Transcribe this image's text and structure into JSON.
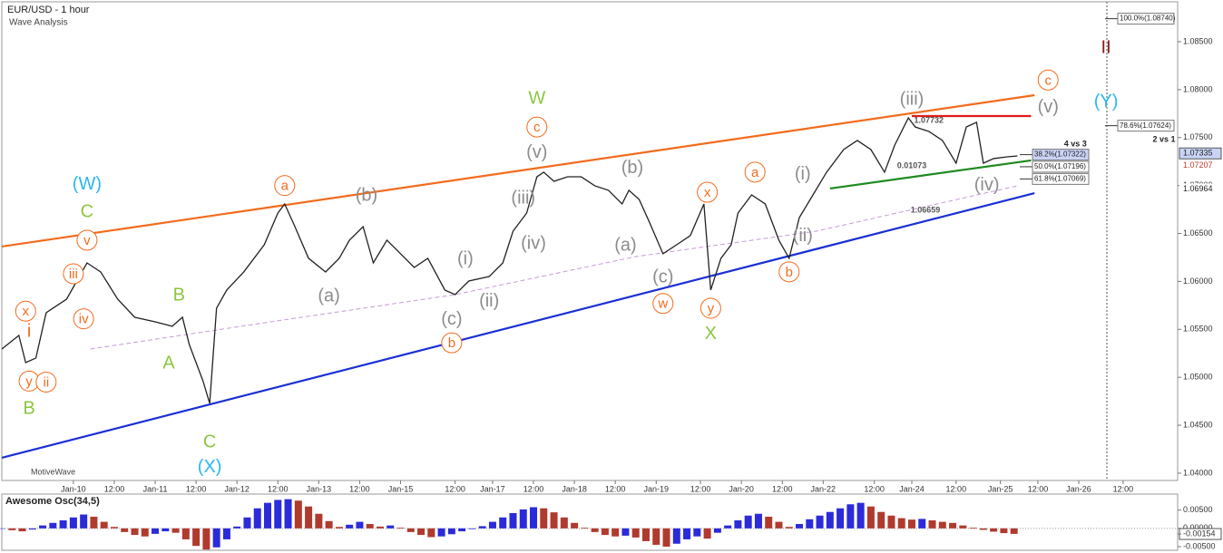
{
  "chart_data": [
    {
      "type": "line",
      "title": "EUR/USD - 1 hour",
      "subtitle": "Wave Analysis",
      "watermark": "MotiveWave",
      "xlim": [
        0,
        345
      ],
      "ylim": [
        1.03924,
        1.08916
      ],
      "xticks": [
        {
          "value": 21,
          "label": "Jan-10"
        },
        {
          "value": 33,
          "label": "12:00"
        },
        {
          "value": 45,
          "label": "Jan-11"
        },
        {
          "value": 57,
          "label": "12:00"
        },
        {
          "value": 69,
          "label": "Jan-12"
        },
        {
          "value": 81,
          "label": "12:00"
        },
        {
          "value": 93,
          "label": "Jan-13"
        },
        {
          "value": 105,
          "label": "12:00"
        },
        {
          "value": 117,
          "label": "Jan-15"
        },
        {
          "value": 133,
          "label": "12:00"
        },
        {
          "value": 144,
          "label": "Jan-17"
        },
        {
          "value": 156,
          "label": "12:00"
        },
        {
          "value": 168,
          "label": "Jan-18"
        },
        {
          "value": 180,
          "label": "12:00"
        },
        {
          "value": 192,
          "label": "Jan-19"
        },
        {
          "value": 205,
          "label": "12:00"
        },
        {
          "value": 217,
          "label": "Jan-20"
        },
        {
          "value": 229,
          "label": "12:00"
        },
        {
          "value": 241,
          "label": "Jan-22"
        },
        {
          "value": 256,
          "label": "12:00"
        },
        {
          "value": 267,
          "label": "Jan-24"
        },
        {
          "value": 280,
          "label": "12:00"
        },
        {
          "value": 293,
          "label": "Jan-25"
        },
        {
          "value": 304,
          "label": "12:00"
        },
        {
          "value": 316,
          "label": "Jan-26"
        },
        {
          "value": 329,
          "label": "12:00"
        }
      ],
      "yticks": [
        {
          "value": 1.04,
          "label": "1.04000"
        },
        {
          "value": 1.045,
          "label": "1.04500"
        },
        {
          "value": 1.05,
          "label": "1.05000"
        },
        {
          "value": 1.055,
          "label": "1.05500"
        },
        {
          "value": 1.06,
          "label": "1.06000"
        },
        {
          "value": 1.065,
          "label": "1.06500"
        },
        {
          "value": 1.07,
          "label": "1.07000"
        },
        {
          "value": 1.075,
          "label": "1.07500"
        },
        {
          "value": 1.08,
          "label": "1.08000"
        },
        {
          "value": 1.085,
          "label": "1.08500"
        }
      ],
      "series": [
        {
          "color": "#222222",
          "x": [
            0,
            5,
            7,
            10,
            13,
            15,
            19,
            25,
            29,
            34,
            39,
            45,
            50,
            53,
            55,
            59,
            61,
            63,
            66,
            71,
            77,
            81,
            83,
            86,
            90,
            95,
            99,
            102,
            106,
            109,
            113,
            117,
            121,
            125,
            130,
            133,
            137,
            143,
            147,
            150,
            154,
            157,
            159,
            162,
            166,
            170,
            174,
            178,
            182,
            184,
            187,
            190,
            194,
            198,
            202,
            206,
            208,
            211,
            214,
            216,
            220,
            224,
            228,
            231,
            234,
            238,
            242,
            247,
            251,
            255,
            259,
            262,
            266,
            268,
            272,
            276,
            280,
            283,
            286,
            288,
            291,
            295,
            298
          ],
          "values": [
            1.05295,
            1.05437,
            1.05153,
            1.05201,
            1.05673,
            1.05721,
            1.05815,
            1.06193,
            1.06099,
            1.05815,
            1.05626,
            1.05579,
            1.05532,
            1.05626,
            1.05342,
            1.04964,
            1.04728,
            1.05721,
            1.0591,
            1.06099,
            1.06382,
            1.06713,
            1.06808,
            1.06571,
            1.06241,
            1.06099,
            1.06241,
            1.0643,
            1.06571,
            1.06193,
            1.0643,
            1.06288,
            1.06146,
            1.06241,
            1.0591,
            1.05862,
            1.06004,
            1.06051,
            1.06193,
            1.06524,
            1.06713,
            1.07091,
            1.07139,
            1.07044,
            1.07091,
            1.07091,
            1.06997,
            1.0695,
            1.06808,
            1.0695,
            1.06855,
            1.06619,
            1.06288,
            1.06382,
            1.06477,
            1.06808,
            1.0591,
            1.06241,
            1.06382,
            1.06713,
            1.06902,
            1.06808,
            1.0643,
            1.06241,
            1.06666,
            1.06902,
            1.07139,
            1.07375,
            1.0747,
            1.07375,
            1.07139,
            1.07422,
            1.07706,
            1.07611,
            1.07564,
            1.0747,
            1.07233,
            1.07611,
            1.07659,
            1.07233,
            1.07281,
            1.07299,
            1.07309
          ]
        }
      ],
      "overlays": [
        {
          "color": "#f26b1d",
          "x": [
            0,
            303
          ],
          "values": [
            1.06364,
            1.07942
          ]
        },
        {
          "color": "#1a2fd6",
          "x": [
            0,
            303
          ],
          "values": [
            1.04161,
            1.06921
          ]
        },
        {
          "color": "#e01b1b",
          "x": [
            267,
            302
          ],
          "values": [
            1.07725,
            1.07725
          ]
        },
        {
          "color": "#1f8a1f",
          "x": [
            243,
            302
          ],
          "values": [
            1.06969,
            1.07262
          ]
        },
        {
          "color": "#c79bd6",
          "dashed": true,
          "x": [
            26,
            79,
            133,
            186,
            239,
            298
          ],
          "values": [
            1.05295,
            1.05579,
            1.05862,
            1.06259,
            1.06524,
            1.06997
          ]
        }
      ],
      "price_markers": [
        1.07335,
        1.07207,
        1.06964
      ],
      "fib_levels": [
        {
          "label": "100.0%(1.08740)",
          "value": 1.0874
        },
        {
          "label": "78.6%(1.07624)",
          "value": 1.07624
        },
        {
          "label": "38.2%(1.07322)",
          "value": 1.07322
        },
        {
          "label": "50.0%(1.07196)",
          "value": 1.07196
        },
        {
          "label": "61.8%(1.07069)",
          "value": 1.07069
        }
      ],
      "annotations": [
        {
          "text": "(W)",
          "x": 25,
          "y": 1.0702,
          "color": "#29b6f6"
        },
        {
          "text": "C",
          "x": 25,
          "y": 1.0673,
          "color": "#8cc63f"
        },
        {
          "text": "v",
          "x": 25,
          "y": 1.0643,
          "color": "#f26b1d",
          "circle": true
        },
        {
          "text": "iii",
          "x": 21,
          "y": 1.0608,
          "color": "#f26b1d",
          "circle": true
        },
        {
          "text": "iv",
          "x": 24,
          "y": 1.0561,
          "color": "#f26b1d",
          "circle": true
        },
        {
          "text": "x",
          "x": 7,
          "y": 1.0569,
          "color": "#f26b1d",
          "circle": true
        },
        {
          "text": "i",
          "x": 8,
          "y": 1.0548,
          "color": "#f26b1d"
        },
        {
          "text": "y",
          "x": 8,
          "y": 1.0496,
          "color": "#f26b1d",
          "circle": true
        },
        {
          "text": "ii",
          "x": 13,
          "y": 1.0495,
          "color": "#f26b1d",
          "circle": true
        },
        {
          "text": "B",
          "x": 8,
          "y": 1.0468,
          "color": "#8cc63f"
        },
        {
          "text": "B",
          "x": 52,
          "y": 1.0586,
          "color": "#8cc63f"
        },
        {
          "text": "A",
          "x": 49,
          "y": 1.0515,
          "color": "#8cc63f"
        },
        {
          "text": "C",
          "x": 61,
          "y": 1.0433,
          "color": "#8cc63f"
        },
        {
          "text": "(X)",
          "x": 61,
          "y": 1.0407,
          "color": "#29b6f6"
        },
        {
          "text": "a",
          "x": 83,
          "y": 1.07,
          "color": "#f26b1d",
          "circle": true
        },
        {
          "text": "(b)",
          "x": 107,
          "y": 1.069,
          "color": "#8c8c8c"
        },
        {
          "text": "(a)",
          "x": 96,
          "y": 1.0585,
          "color": "#8c8c8c"
        },
        {
          "text": "(c)",
          "x": 132,
          "y": 1.0561,
          "color": "#8c8c8c"
        },
        {
          "text": "b",
          "x": 132,
          "y": 1.0536,
          "color": "#f26b1d",
          "circle": true
        },
        {
          "text": "(i)",
          "x": 136,
          "y": 1.0624,
          "color": "#8c8c8c"
        },
        {
          "text": "(ii)",
          "x": 143,
          "y": 1.058,
          "color": "#8c8c8c"
        },
        {
          "text": "(iii)",
          "x": 153,
          "y": 1.0687,
          "color": "#8c8c8c"
        },
        {
          "text": "(iv)",
          "x": 156,
          "y": 1.064,
          "color": "#8c8c8c"
        },
        {
          "text": "(v)",
          "x": 157,
          "y": 1.0735,
          "color": "#8c8c8c"
        },
        {
          "text": "c",
          "x": 157,
          "y": 1.0761,
          "color": "#f26b1d",
          "circle": true
        },
        {
          "text": "W",
          "x": 157,
          "y": 1.0791,
          "color": "#8cc63f"
        },
        {
          "text": "(b)",
          "x": 185,
          "y": 1.0719,
          "color": "#8c8c8c"
        },
        {
          "text": "(a)",
          "x": 183,
          "y": 1.0638,
          "color": "#8c8c8c"
        },
        {
          "text": "(c)",
          "x": 194,
          "y": 1.0605,
          "color": "#8c8c8c"
        },
        {
          "text": "w",
          "x": 194,
          "y": 1.0577,
          "color": "#f26b1d",
          "circle": true
        },
        {
          "text": "x",
          "x": 207,
          "y": 1.0693,
          "color": "#f26b1d",
          "circle": true
        },
        {
          "text": "y",
          "x": 208,
          "y": 1.0572,
          "color": "#f26b1d",
          "circle": true
        },
        {
          "text": "X",
          "x": 208,
          "y": 1.0546,
          "color": "#8cc63f"
        },
        {
          "text": "a",
          "x": 221,
          "y": 1.0714,
          "color": "#f26b1d",
          "circle": true
        },
        {
          "text": "(i)",
          "x": 235,
          "y": 1.0712,
          "color": "#8c8c8c"
        },
        {
          "text": "(ii)",
          "x": 235,
          "y": 1.0648,
          "color": "#8c8c8c"
        },
        {
          "text": "b",
          "x": 231,
          "y": 1.061,
          "color": "#f26b1d",
          "circle": true
        },
        {
          "text": "(iii)",
          "x": 267,
          "y": 1.079,
          "color": "#8c8c8c"
        },
        {
          "text": "(v)",
          "x": 307,
          "y": 1.0782,
          "color": "#8c8c8c"
        },
        {
          "text": "c",
          "x": 307,
          "y": 1.081,
          "color": "#f26b1d",
          "circle": true
        },
        {
          "text": "(iv)",
          "x": 289,
          "y": 1.0701,
          "color": "#8c8c8c"
        },
        {
          "text": "II",
          "x": 324,
          "y": 1.0844,
          "color": "#8b1a1a"
        },
        {
          "text": "(Y)",
          "x": 324,
          "y": 1.0788,
          "color": "#29b6f6"
        },
        {
          "text": "4 vs 3",
          "x": 315,
          "y": 1.07441,
          "color": "#222222",
          "small": true
        },
        {
          "text": "2 vs 1",
          "x": 341,
          "y": 1.07488,
          "color": "#222222",
          "small": true
        },
        {
          "text": "1.07732",
          "x": 272,
          "y": 1.07687,
          "color": "#555555",
          "small": true
        },
        {
          "text": "0.01073",
          "x": 267,
          "y": 1.07214,
          "color": "#555555",
          "small": true
        },
        {
          "text": "1.06659",
          "x": 271,
          "y": 1.06751,
          "color": "#555555",
          "small": true
        }
      ]
    },
    {
      "type": "bar",
      "title": "Awesome Osc(34,5)",
      "up_color": "#2b2bd9",
      "down_color": "#b03a2e",
      "ylim": [
        -0.006,
        0.0094
      ],
      "yticks": [
        {
          "value": 0.005,
          "label": "0.00500"
        },
        {
          "value": 0,
          "label": "0.00000"
        },
        -0.00154,
        {
          "value": -0.005,
          "label": "-0.00500"
        }
      ],
      "x": [
        0,
        3,
        6,
        9,
        12,
        15,
        18,
        21,
        24,
        27,
        30,
        33,
        36,
        39,
        42,
        45,
        48,
        51,
        54,
        57,
        60,
        63,
        66,
        69,
        72,
        75,
        78,
        81,
        84,
        87,
        90,
        93,
        96,
        99,
        102,
        105,
        108,
        111,
        114,
        117,
        120,
        123,
        126,
        129,
        132,
        135,
        138,
        141,
        144,
        147,
        150,
        153,
        156,
        159,
        162,
        165,
        168,
        171,
        174,
        177,
        180,
        183,
        186,
        189,
        192,
        195,
        198,
        201,
        204,
        207,
        210,
        213,
        216,
        219,
        222,
        225,
        228,
        231,
        234,
        237,
        240,
        243,
        246,
        249,
        252,
        255,
        258,
        261,
        264,
        267,
        270,
        273,
        276,
        279,
        282,
        285,
        288,
        291,
        294,
        297
      ],
      "values": [
        0,
        -0.0005,
        -0.0008,
        -0.0003,
        0.0008,
        0.0015,
        0.0022,
        0.003,
        0.0038,
        0.0032,
        0.0018,
        0.0004,
        -0.001,
        -0.0018,
        -0.0022,
        -0.0015,
        -0.0008,
        -0.0012,
        -0.003,
        -0.0048,
        -0.0058,
        -0.0052,
        -0.003,
        0.0005,
        0.003,
        0.0055,
        0.007,
        0.0078,
        0.008,
        0.0076,
        0.006,
        0.004,
        0.002,
        0.0004,
        0.001,
        0.0018,
        0.0012,
        0.0005,
        0.0008,
        0.0002,
        -0.001,
        -0.0018,
        -0.0024,
        -0.0022,
        -0.0016,
        -0.0008,
        -0.0002,
        0.0006,
        0.0018,
        0.003,
        0.0042,
        0.0052,
        0.0058,
        0.0055,
        0.0044,
        0.003,
        0.0015,
        0.0002,
        -0.001,
        -0.0018,
        -0.0022,
        -0.002,
        -0.0025,
        -0.0035,
        -0.0045,
        -0.005,
        -0.0042,
        -0.003,
        -0.0022,
        -0.0028,
        -0.0012,
        0.0008,
        0.0022,
        0.0035,
        0.004,
        0.0032,
        0.0018,
        0.0004,
        0.0012,
        0.0025,
        0.0035,
        0.0045,
        0.0055,
        0.0066,
        0.007,
        0.006,
        0.0045,
        0.0035,
        0.0028,
        0.0024,
        0.0026,
        0.0022,
        0.0018,
        0.0015,
        0.0008,
        0.0002,
        -0.0004,
        -0.0009,
        -0.0013,
        -0.0015
      ]
    }
  ]
}
